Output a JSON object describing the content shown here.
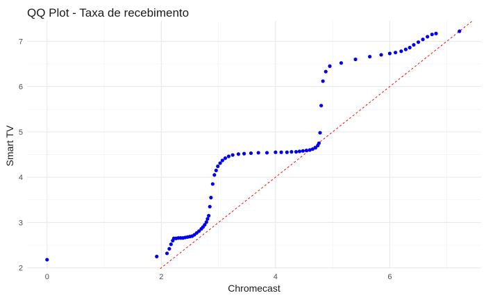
{
  "chart_data": {
    "type": "scatter",
    "title": "QQ Plot - Taxa de recebimento",
    "xlabel": "Chromecast",
    "ylabel": "Smart TV",
    "xlim": [
      -0.35,
      7.6
    ],
    "ylim": [
      1.98,
      7.45
    ],
    "x_ticks": [
      0,
      2,
      4,
      6
    ],
    "y_ticks": [
      2,
      3,
      4,
      5,
      6,
      7
    ],
    "grid": true,
    "legend": "none",
    "point_color": "#0000ee",
    "reference_line": {
      "slope": 1,
      "intercept": 0,
      "color": "#ff0000",
      "style": "dashed"
    },
    "points": [
      [
        0.0,
        2.18
      ],
      [
        1.92,
        2.25
      ],
      [
        2.1,
        2.32
      ],
      [
        2.14,
        2.42
      ],
      [
        2.17,
        2.52
      ],
      [
        2.2,
        2.6
      ],
      [
        2.22,
        2.65
      ],
      [
        2.26,
        2.65
      ],
      [
        2.3,
        2.66
      ],
      [
        2.34,
        2.66
      ],
      [
        2.38,
        2.66
      ],
      [
        2.42,
        2.67
      ],
      [
        2.46,
        2.68
      ],
      [
        2.5,
        2.69
      ],
      [
        2.54,
        2.7
      ],
      [
        2.58,
        2.73
      ],
      [
        2.62,
        2.77
      ],
      [
        2.66,
        2.81
      ],
      [
        2.7,
        2.86
      ],
      [
        2.73,
        2.9
      ],
      [
        2.76,
        2.95
      ],
      [
        2.79,
        3.01
      ],
      [
        2.81,
        3.08
      ],
      [
        2.83,
        3.15
      ],
      [
        2.85,
        3.35
      ],
      [
        2.87,
        3.55
      ],
      [
        2.9,
        3.85
      ],
      [
        2.93,
        4.05
      ],
      [
        2.96,
        4.15
      ],
      [
        2.99,
        4.24
      ],
      [
        3.03,
        4.31
      ],
      [
        3.07,
        4.37
      ],
      [
        3.12,
        4.42
      ],
      [
        3.18,
        4.46
      ],
      [
        3.25,
        4.49
      ],
      [
        3.35,
        4.51
      ],
      [
        3.45,
        4.52
      ],
      [
        3.57,
        4.53
      ],
      [
        3.7,
        4.54
      ],
      [
        3.85,
        4.54
      ],
      [
        4.0,
        4.55
      ],
      [
        4.1,
        4.55
      ],
      [
        4.2,
        4.55
      ],
      [
        4.28,
        4.56
      ],
      [
        4.36,
        4.56
      ],
      [
        4.42,
        4.57
      ],
      [
        4.48,
        4.58
      ],
      [
        4.54,
        4.59
      ],
      [
        4.6,
        4.6
      ],
      [
        4.65,
        4.62
      ],
      [
        4.7,
        4.65
      ],
      [
        4.74,
        4.7
      ],
      [
        4.76,
        4.75
      ],
      [
        4.78,
        4.98
      ],
      [
        4.8,
        5.58
      ],
      [
        4.83,
        6.12
      ],
      [
        4.88,
        6.33
      ],
      [
        4.95,
        6.45
      ],
      [
        5.15,
        6.52
      ],
      [
        5.4,
        6.6
      ],
      [
        5.65,
        6.66
      ],
      [
        5.85,
        6.7
      ],
      [
        6.0,
        6.73
      ],
      [
        6.1,
        6.75
      ],
      [
        6.2,
        6.78
      ],
      [
        6.28,
        6.82
      ],
      [
        6.35,
        6.86
      ],
      [
        6.42,
        6.92
      ],
      [
        6.5,
        6.98
      ],
      [
        6.58,
        7.04
      ],
      [
        6.66,
        7.1
      ],
      [
        6.74,
        7.15
      ],
      [
        6.81,
        7.17
      ],
      [
        7.22,
        7.22
      ]
    ]
  }
}
